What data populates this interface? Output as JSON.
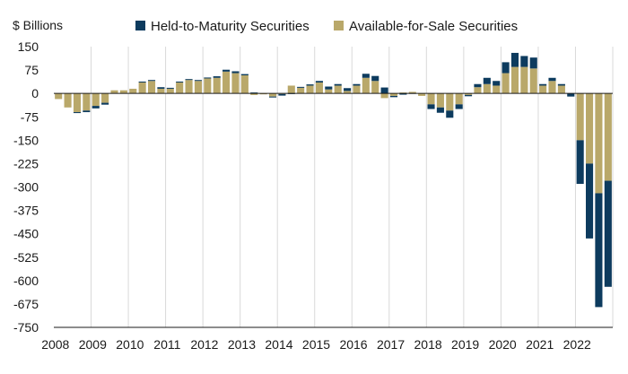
{
  "chart_data": {
    "type": "bar",
    "stacked": true,
    "ylabel": "$ Billions",
    "ylim": [
      -750,
      150
    ],
    "yticks": [
      150,
      75,
      0,
      -75,
      -150,
      -225,
      -300,
      -375,
      -450,
      -525,
      -600,
      -675,
      -750
    ],
    "ytick_labels": [
      "150",
      "75",
      "0",
      "-75",
      "-150",
      "-225",
      "-300",
      "-375",
      "-450",
      "-525",
      "-600",
      "-675",
      "-750"
    ],
    "years": [
      "2008",
      "2009",
      "2010",
      "2011",
      "2012",
      "2013",
      "2014",
      "2015",
      "2016",
      "2017",
      "2018",
      "2019",
      "2020",
      "2021",
      "2022"
    ],
    "quarters_per_year": 4,
    "legend_position": "top",
    "grid": "vertical-year-lines",
    "series": [
      {
        "name": "Held-to-Maturity Securities",
        "color": "#0d3b5e",
        "values": [
          0,
          0,
          -3,
          -5,
          -8,
          -6,
          0,
          0,
          0,
          3,
          3,
          5,
          3,
          3,
          3,
          3,
          3,
          5,
          6,
          6,
          4,
          3,
          0,
          -3,
          -5,
          -2,
          3,
          4,
          5,
          9,
          5,
          9,
          5,
          13,
          16,
          19,
          -4,
          -4,
          -1,
          0,
          -15,
          -17,
          -23,
          -15,
          -4,
          10,
          20,
          15,
          35,
          45,
          35,
          35,
          5,
          10,
          5,
          -10,
          -140,
          -240,
          -365,
          -340
        ]
      },
      {
        "name": "Available-for-Sale Securities",
        "color": "#b9a86a",
        "values": [
          -18,
          -45,
          -60,
          -55,
          -40,
          -30,
          10,
          10,
          15,
          35,
          40,
          15,
          15,
          35,
          43,
          40,
          48,
          50,
          70,
          65,
          58,
          -5,
          -3,
          -10,
          -2,
          25,
          18,
          25,
          35,
          13,
          25,
          8,
          25,
          50,
          40,
          -15,
          -8,
          3,
          5,
          -8,
          -35,
          -45,
          -55,
          -35,
          -5,
          20,
          30,
          25,
          65,
          85,
          85,
          80,
          25,
          40,
          25,
          0,
          -150,
          -225,
          -320,
          -280
        ]
      }
    ]
  }
}
